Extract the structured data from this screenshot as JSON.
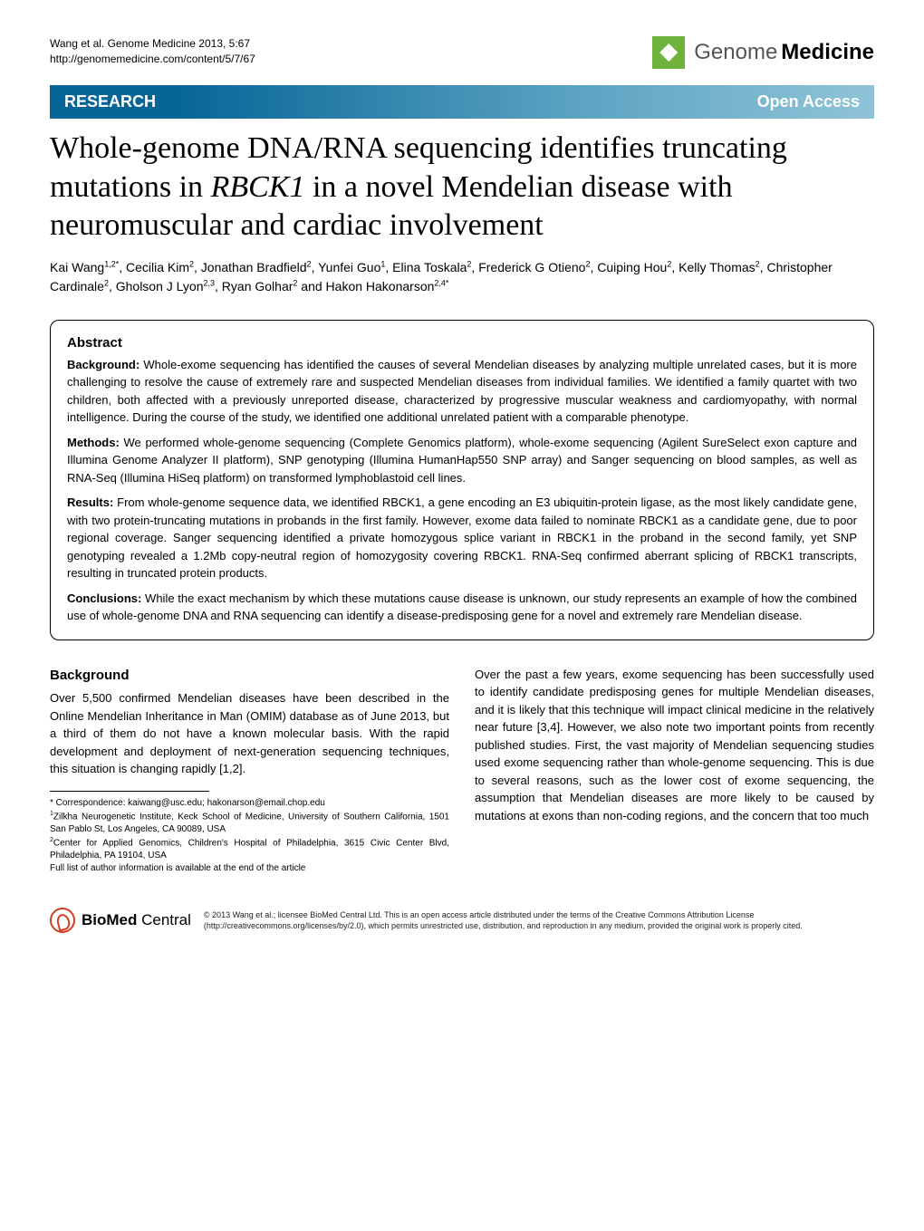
{
  "header": {
    "citation_line1": "Wang et al. Genome Medicine 2013, 5:67",
    "citation_line2": "http://genomemedicine.com/content/5/7/67",
    "logo_text1": "Genome",
    "logo_text2": "Medicine",
    "logo_bg": "#6fb23c"
  },
  "banner": {
    "left": "RESEARCH",
    "right": "Open Access",
    "bg_left": "#056596",
    "bg_right_end": "#8fc3d8"
  },
  "title_parts": {
    "before": "Whole-genome DNA/RNA sequencing identifies truncating mutations in ",
    "italic": "RBCK1",
    "after": " in a novel Mendelian disease with neuromuscular and cardiac involvement"
  },
  "authors_html": "Kai Wang<sup>1,2*</sup>, Cecilia Kim<sup>2</sup>, Jonathan Bradfield<sup>2</sup>, Yunfei Guo<sup>1</sup>, Elina Toskala<sup>2</sup>, Frederick G Otieno<sup>2</sup>, Cuiping Hou<sup>2</sup>, Kelly Thomas<sup>2</sup>, Christopher Cardinale<sup>2</sup>, Gholson J Lyon<sup>2,3</sup>, Ryan Golhar<sup>2</sup> and Hakon Hakonarson<sup>2,4*</sup>",
  "abstract": {
    "heading": "Abstract",
    "background_label": "Background:",
    "background": " Whole-exome sequencing has identified the causes of several Mendelian diseases by analyzing multiple unrelated cases, but it is more challenging to resolve the cause of extremely rare and suspected Mendelian diseases from individual families. We identified a family quartet with two children, both affected with a previously unreported disease, characterized by progressive muscular weakness and cardiomyopathy, with normal intelligence. During the course of the study, we identified one additional unrelated patient with a comparable phenotype.",
    "methods_label": "Methods:",
    "methods": " We performed whole-genome sequencing (Complete Genomics platform), whole-exome sequencing (Agilent SureSelect exon capture and Illumina Genome Analyzer II platform), SNP genotyping (Illumina HumanHap550 SNP array) and Sanger sequencing on blood samples, as well as RNA-Seq (Illumina HiSeq platform) on transformed lymphoblastoid cell lines.",
    "results_label": "Results:",
    "results": " From whole-genome sequence data, we identified RBCK1, a gene encoding an E3 ubiquitin-protein ligase, as the most likely candidate gene, with two protein-truncating mutations in probands in the first family. However, exome data failed to nominate RBCK1 as a candidate gene, due to poor regional coverage. Sanger sequencing identified a private homozygous splice variant in RBCK1 in the proband in the second family, yet SNP genotyping revealed a 1.2Mb copy-neutral region of homozygosity covering RBCK1. RNA-Seq confirmed aberrant splicing of RBCK1 transcripts, resulting in truncated protein products.",
    "conclusions_label": "Conclusions:",
    "conclusions": " While the exact mechanism by which these mutations cause disease is unknown, our study represents an example of how the combined use of whole-genome DNA and RNA sequencing can identify a disease-predisposing gene for a novel and extremely rare Mendelian disease."
  },
  "body": {
    "heading": "Background",
    "col1_p1": "Over 5,500 confirmed Mendelian diseases have been described in the Online Mendelian Inheritance in Man (OMIM) database as of June 2013, but a third of them do not have a known molecular basis. With the rapid development and deployment of next-generation sequencing techniques, this situation is changing rapidly [1,2].",
    "col2_p1": "Over the past a few years, exome sequencing has been successfully used to identify candidate predisposing genes for multiple Mendelian diseases, and it is likely that this technique will impact clinical medicine in the relatively near future [3,4]. However, we also note two important points from recently published studies. First, the vast majority of Mendelian sequencing studies used exome sequencing rather than whole-genome sequencing. This is due to several reasons, such as the lower cost of exome sequencing, the assumption that Mendelian diseases are more likely to be caused by mutations at exons than non-coding regions, and the concern that too much"
  },
  "correspondence": {
    "star": "* Correspondence: kaiwang@usc.edu; hakonarson@email.chop.edu",
    "aff1": "1Zilkha Neurogenetic Institute, Keck School of Medicine, University of Southern California, 1501 San Pablo St, Los Angeles, CA 90089, USA",
    "aff2": "2Center for Applied Genomics, Children's Hospital of Philadelphia, 3615 Civic Center Blvd, Philadelphia, PA 19104, USA",
    "full": "Full list of author information is available at the end of the article"
  },
  "footer": {
    "bmc_bold": "BioMed",
    "bmc_rest": " Central",
    "license": "© 2013 Wang et al.; licensee BioMed Central Ltd. This is an open access article distributed under the terms of the Creative Commons Attribution License (http://creativecommons.org/licenses/by/2.0), which permits unrestricted use, distribution, and reproduction in any medium, provided the original work is properly cited."
  }
}
